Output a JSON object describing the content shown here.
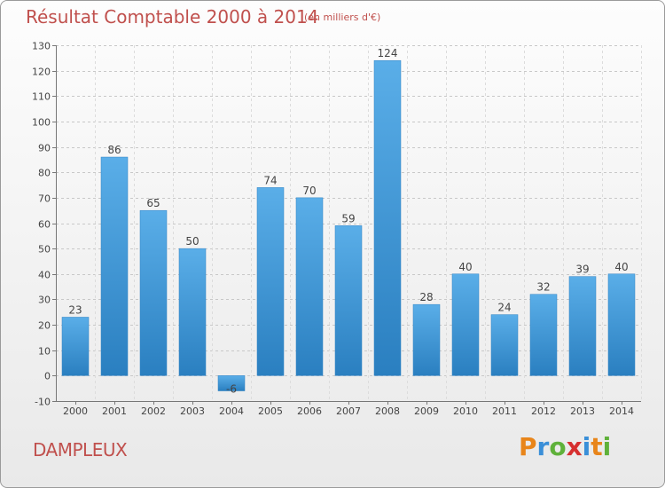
{
  "header": {
    "title": "Résultat Comptable 2000 à 2014",
    "unit": "(en milliers d'€)"
  },
  "footer": {
    "commune": "DAMPLEUX",
    "brand_letters": [
      "P",
      "r",
      "o",
      "x",
      "i",
      "t",
      "i"
    ],
    "brand_colors": [
      "#e8851a",
      "#3a8fd8",
      "#5fb13a",
      "#d62f2f",
      "#3a8fd8",
      "#e8851a",
      "#5fb13a"
    ]
  },
  "chart_data": {
    "type": "bar",
    "categories": [
      "2000",
      "2001",
      "2002",
      "2003",
      "2004",
      "2005",
      "2006",
      "2007",
      "2008",
      "2009",
      "2010",
      "2011",
      "2012",
      "2013",
      "2014"
    ],
    "values": [
      23,
      86,
      65,
      50,
      -6,
      74,
      70,
      59,
      124,
      28,
      40,
      24,
      32,
      39,
      40
    ],
    "ylim": [
      -10,
      130
    ],
    "yticks": [
      -10,
      0,
      10,
      20,
      30,
      40,
      50,
      60,
      70,
      80,
      90,
      100,
      110,
      120,
      130
    ],
    "grid": true,
    "bar_color": "#3f97dc",
    "title": "Résultat Comptable 2000 à 2014",
    "xlabel": "",
    "ylabel": ""
  }
}
